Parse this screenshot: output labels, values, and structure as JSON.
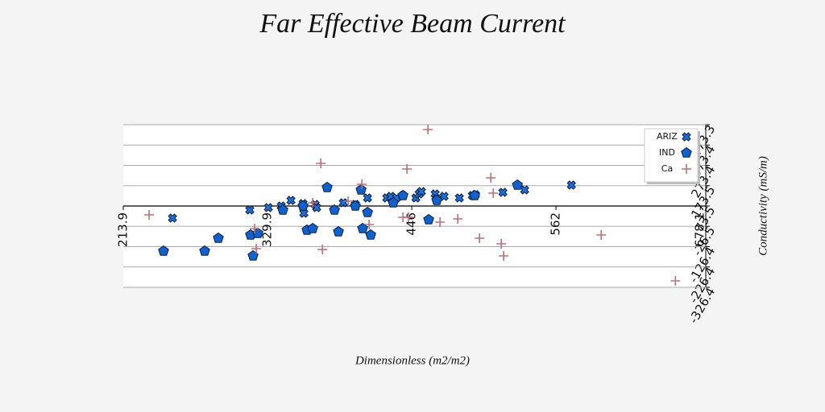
{
  "chart_data": {
    "type": "scatter",
    "title": "Far Effective Beam Current",
    "x_label": "Dimensionless (m2/m2)",
    "y_label": "Conductivity (mS/m)",
    "xlim": [
      213.9,
      682.5
    ],
    "xticks": [
      213.9,
      329.9,
      446.0,
      562.0,
      678.1
    ],
    "ylim": [
      -326.4,
      473.3
    ],
    "yticks": [
      473.3,
      373.4,
      273.4,
      173.5,
      73.5,
      -26.5,
      -126.4,
      -226.4,
      -326.4
    ],
    "grid": true,
    "legend": "upper right",
    "series": [
      {
        "name": "ARIZ",
        "color": "#1f6fd6",
        "marker": "x",
        "x": [
          253.5,
          315.7,
          330.6,
          341.0,
          348.8,
          358.5,
          359.2,
          368.2,
          369.5,
          390.9,
          400.6,
          410.4,
          425.9,
          429.2,
          433.7,
          438.9,
          449.3,
          451.9,
          453.8,
          464.8,
          466.1,
          472.0,
          484.3,
          494.7,
          497.2,
          519.3,
          536.8,
          574.4
        ],
        "values": [
          14.1,
          53.6,
          65.5,
          73.5,
          101.2,
          85.3,
          37.8,
          81.4,
          65.5,
          89.3,
          81.4,
          113.0,
          113.0,
          120.9,
          113.0,
          124.9,
          113.0,
          132.8,
          144.7,
          132.8,
          109.1,
          120.9,
          113.0,
          124.9,
          128.9,
          140.7,
          152.6,
          176.4
        ]
      },
      {
        "name": "IND",
        "color": "#1260c8",
        "marker": "pentagon",
        "x": [
          246.3,
          279.4,
          290.4,
          316.3,
          318.3,
          322.2,
          342.3,
          358.5,
          361.7,
          366.3,
          377.9,
          383.8,
          387.0,
          400.6,
          405.2,
          406.5,
          410.4,
          413.0,
          431.1,
          438.9,
          459.6,
          466.1,
          496.6,
          531.0
        ],
        "values": [
          -148.3,
          -148.3,
          -84.9,
          -69.1,
          -172.0,
          -61.2,
          53.6,
          73.5,
          -45.3,
          -37.4,
          164.5,
          53.6,
          -53.2,
          73.5,
          152.6,
          -37.4,
          41.8,
          -69.1,
          89.3,
          124.9,
          6.1,
          101.2,
          124.9,
          176.4
        ]
      },
      {
        "name": "Ca",
        "color": "#b5737a",
        "marker": "plus",
        "x": [
          234.7,
          319.6,
          320.9,
          366.3,
          372.8,
          374.1,
          394.8,
          405.8,
          411.7,
          438.9,
          442.1,
          443.4,
          459.0,
          468.7,
          483.0,
          500.5,
          509.6,
          511.5,
          518.0,
          519.9,
          598.4,
          658.1
        ],
        "values": [
          29.9,
          -37.4,
          -136.4,
          89.3,
          283.3,
          -140.4,
          97.2,
          180.3,
          -17.6,
          18.0,
          255.6,
          18.0,
          449.5,
          -5.7,
          10.1,
          -84.9,
          212.0,
          136.8,
          -112.6,
          -172.0,
          -69.1,
          -294.7
        ]
      }
    ]
  }
}
